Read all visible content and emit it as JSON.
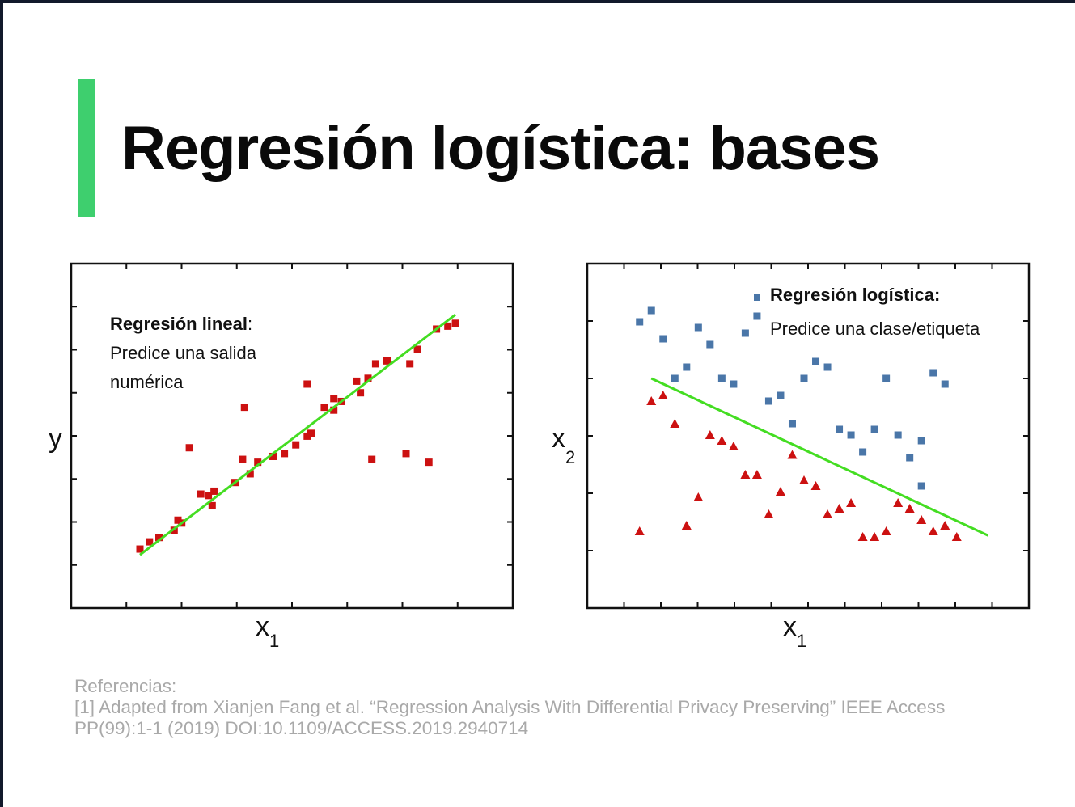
{
  "slide": {
    "title": "Regresión logística: bases",
    "accent_color": "#3ecf6e",
    "background": "#ffffff",
    "frame_color": "#12192b"
  },
  "chart_data": [
    {
      "type": "scatter",
      "name": "linear-regression",
      "title": "",
      "xlabel": "x",
      "xlabel_sub": "1",
      "ylabel": "y",
      "xlim": [
        0,
        100
      ],
      "ylim": [
        0,
        100
      ],
      "grid": false,
      "annotation": {
        "bold": "Regresión lineal",
        "suffix": ":",
        "line1": "Predice una salida",
        "line2": "numérica"
      },
      "marker_color": "#cc1111",
      "fit_line": {
        "x": [
          10,
          93
        ],
        "y": [
          10,
          93
        ],
        "color": "#44dd22"
      },
      "series": [
        {
          "name": "data",
          "marker": "square",
          "points": [
            [
              10,
              12
            ],
            [
              12.5,
              14.5
            ],
            [
              15,
              16
            ],
            [
              19,
              18.5
            ],
            [
              20,
              22
            ],
            [
              21,
              21
            ],
            [
              23,
              47
            ],
            [
              26,
              31
            ],
            [
              28,
              30.5
            ],
            [
              29,
              27
            ],
            [
              29.5,
              32
            ],
            [
              35,
              35
            ],
            [
              37,
              43
            ],
            [
              37.5,
              61
            ],
            [
              39,
              38
            ],
            [
              41,
              42
            ],
            [
              45,
              44
            ],
            [
              48,
              45
            ],
            [
              51,
              48
            ],
            [
              54,
              51
            ],
            [
              54,
              69
            ],
            [
              55,
              52
            ],
            [
              58.5,
              61
            ],
            [
              61,
              60
            ],
            [
              61,
              64
            ],
            [
              63,
              63
            ],
            [
              67,
              70
            ],
            [
              68,
              66
            ],
            [
              70,
              71
            ],
            [
              71,
              43
            ],
            [
              72,
              76
            ],
            [
              75,
              77
            ],
            [
              80,
              45
            ],
            [
              81,
              76
            ],
            [
              83,
              81
            ],
            [
              86,
              42
            ],
            [
              88,
              88
            ],
            [
              91,
              89
            ],
            [
              93,
              90
            ]
          ]
        }
      ]
    },
    {
      "type": "scatter",
      "name": "logistic-regression",
      "title": "",
      "xlabel": "x",
      "xlabel_sub": "1",
      "ylabel": "x",
      "ylabel_sub": "2",
      "xlim": [
        0,
        100
      ],
      "ylim": [
        0,
        100
      ],
      "grid": false,
      "annotation": {
        "bold": "Regresión logística:",
        "line1": "Predice una clase/etiqueta"
      },
      "fit_line": {
        "x": [
          11,
          97
        ],
        "y": [
          68,
          12.5
        ],
        "color": "#44dd22"
      },
      "series": [
        {
          "name": "clase-azul",
          "marker": "square",
          "color": "#4a76a8",
          "points": [
            [
              8,
              88
            ],
            [
              11,
              92
            ],
            [
              14,
              82
            ],
            [
              17,
              68
            ],
            [
              20,
              72
            ],
            [
              23,
              86
            ],
            [
              26,
              80
            ],
            [
              29,
              68
            ],
            [
              32,
              66
            ],
            [
              35,
              84
            ],
            [
              38,
              90
            ],
            [
              41,
              60
            ],
            [
              44,
              62
            ],
            [
              47,
              52
            ],
            [
              50,
              68
            ],
            [
              53,
              74
            ],
            [
              56,
              72
            ],
            [
              59,
              50
            ],
            [
              62,
              48
            ],
            [
              65,
              42
            ],
            [
              68,
              50
            ],
            [
              71,
              68
            ],
            [
              74,
              48
            ],
            [
              77,
              40
            ],
            [
              80,
              46
            ],
            [
              80,
              30
            ],
            [
              83,
              70
            ],
            [
              86,
              66
            ]
          ]
        },
        {
          "name": "clase-roja",
          "marker": "triangle",
          "color": "#cc1111",
          "points": [
            [
              8,
              14
            ],
            [
              11,
              60
            ],
            [
              14,
              62
            ],
            [
              17,
              52
            ],
            [
              20,
              16
            ],
            [
              23,
              26
            ],
            [
              26,
              48
            ],
            [
              29,
              46
            ],
            [
              32,
              44
            ],
            [
              35,
              34
            ],
            [
              38,
              34
            ],
            [
              41,
              20
            ],
            [
              44,
              28
            ],
            [
              47,
              41
            ],
            [
              50,
              32
            ],
            [
              53,
              30
            ],
            [
              56,
              20
            ],
            [
              59,
              22
            ],
            [
              62,
              24
            ],
            [
              65,
              12
            ],
            [
              68,
              12
            ],
            [
              71,
              14
            ],
            [
              74,
              24
            ],
            [
              77,
              22
            ],
            [
              80,
              18
            ],
            [
              83,
              14
            ],
            [
              86,
              16
            ],
            [
              89,
              12
            ]
          ]
        }
      ]
    }
  ],
  "references": {
    "heading": "Referencias:",
    "line1": "[1] Adapted from Xianjen Fang et al. “Regression Analysis With Differential Privacy Preserving” IEEE Access",
    "line2": "PP(99):1-1 (2019) DOI:10.1109/ACCESS.2019.2940714"
  }
}
